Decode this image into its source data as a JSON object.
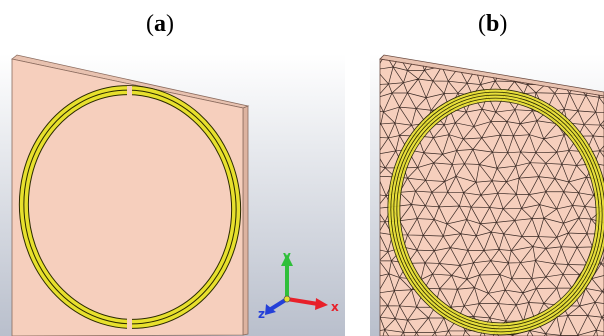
{
  "panels": [
    {
      "id": "a",
      "open": "(",
      "letter": "a",
      "close": ")"
    },
    {
      "id": "b",
      "open": "(",
      "letter": "b",
      "close": ")"
    }
  ],
  "axes_triad": {
    "x_label": "x",
    "y_label": "y",
    "z_label": "z"
  },
  "colors": {
    "viewport_top": "#ffffff",
    "viewport_bottom": "#b9bfcc",
    "substrate_face": "#f6cfbd",
    "substrate_edge": "#c9a08c",
    "substrate_side": "#ddb3a0",
    "ring_fill": "#e7e02d",
    "ring_outline": "#2a2a00",
    "mesh_line": "#3a2a25",
    "axis_x": "#e8202a",
    "axis_y": "#2fbf3a",
    "axis_z": "#2440d8"
  }
}
